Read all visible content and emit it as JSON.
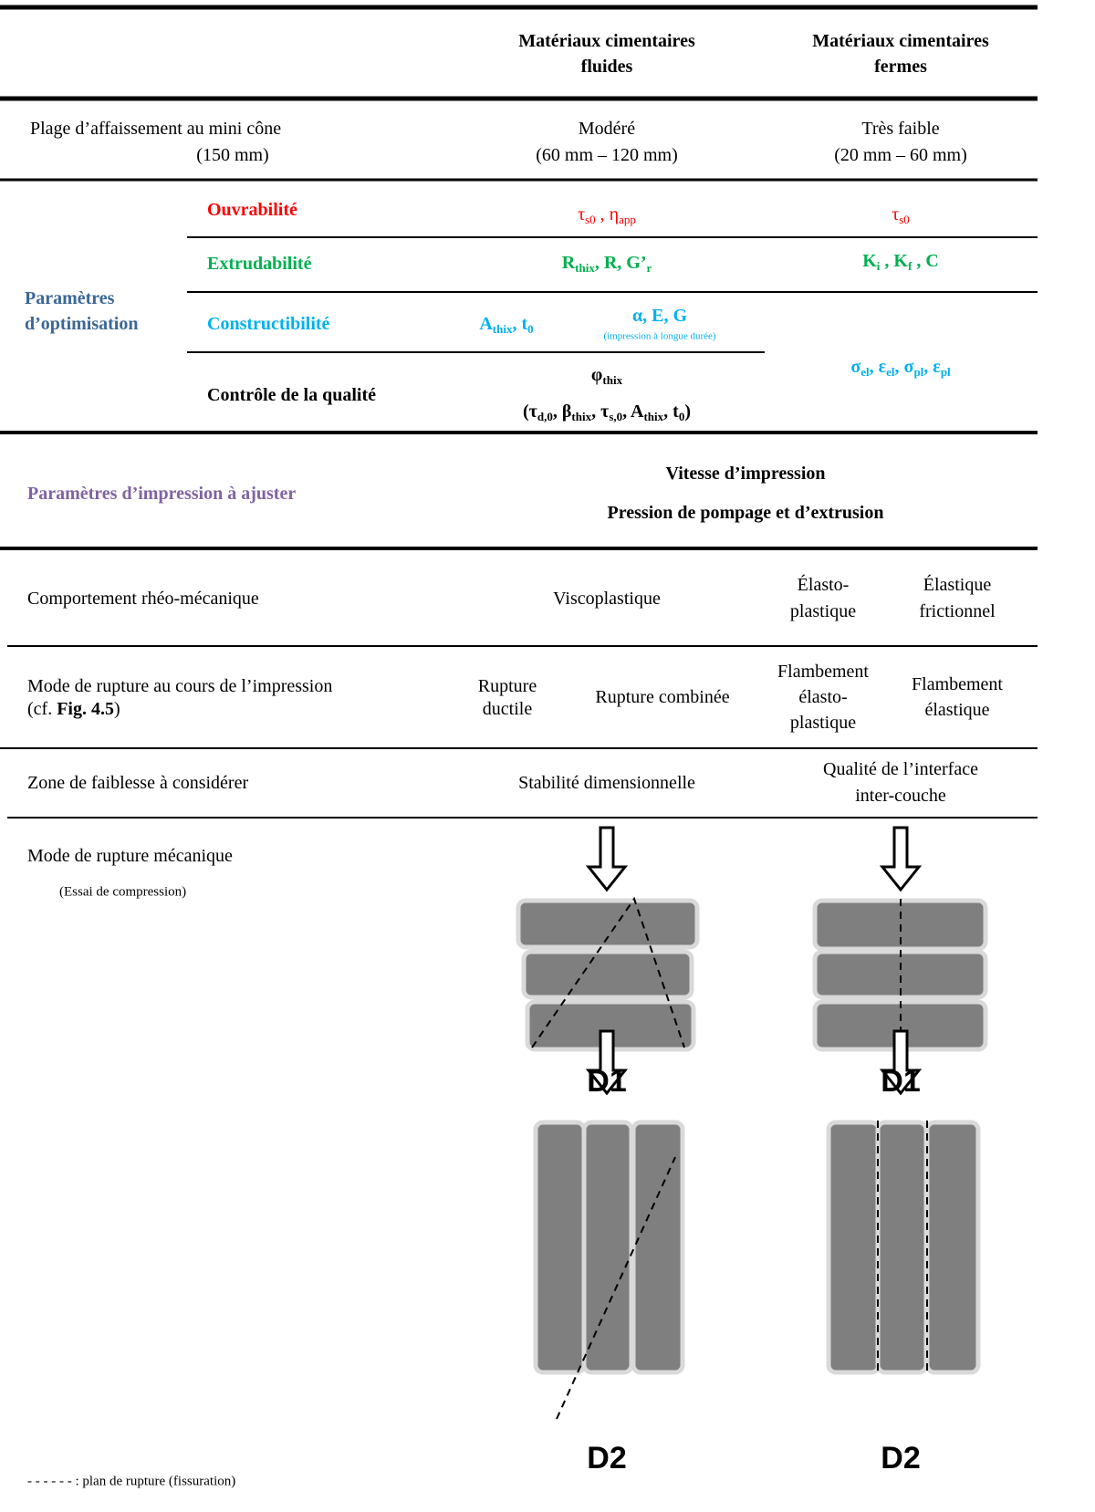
{
  "header": {
    "fluid": [
      "Matériaux cimentaires",
      "fluides"
    ],
    "firm": [
      "Matériaux cimentaires",
      "fermes"
    ]
  },
  "slump": {
    "label": [
      "Plage d’affaissement au mini cône",
      "(150 mm)"
    ],
    "fluid": [
      "Modéré",
      "(60 mm – 120 mm)"
    ],
    "firm": [
      "Très faible",
      "(20 mm – 60 mm)"
    ]
  },
  "optimisation": {
    "label": [
      "Paramètres",
      "d’optimisation"
    ],
    "workability": {
      "label": "Ouvrabilité",
      "fluid": [
        {
          "text": "τ",
          "sub": "s0"
        },
        {
          "text": " , η",
          "sub": "app"
        }
      ],
      "firm": [
        {
          "text": "τ",
          "sub": "s0"
        }
      ]
    },
    "extrudability": {
      "label": "Extrudabilité",
      "fluid": [
        {
          "text": "R",
          "sub": "thix"
        },
        {
          "text": ", R, G’",
          "sub": "r"
        }
      ],
      "firm": [
        {
          "text": "K",
          "sub": "i"
        },
        {
          "text": " , K",
          "sub": "f"
        },
        {
          "text": " , C"
        }
      ]
    },
    "buildability": {
      "label": "Constructibilité",
      "fluid_short": [
        {
          "text": "A",
          "sub": "thix"
        },
        {
          "text": ", t",
          "sub": "0"
        }
      ],
      "fluid_long": [
        {
          "text": "α, E, G"
        }
      ],
      "fluid_long_note": "(impression à longue durée)",
      "firm": [
        {
          "text": "σ",
          "sub": "el"
        },
        {
          "text": ", ε",
          "sub": "el"
        },
        {
          "text": ", σ",
          "sub": "pl"
        },
        {
          "text": ", ε",
          "sub": "pl"
        }
      ]
    },
    "quality": {
      "label": "Contrôle de la qualité",
      "fluid_main": [
        {
          "text": "φ",
          "sub": "thix"
        }
      ],
      "fluid_detail": [
        {
          "text": "(τ",
          "sub": "d,0"
        },
        {
          "text": ", β",
          "sub": "thix"
        },
        {
          "text": ", τ",
          "sub": "s,0"
        },
        {
          "text": ",  A",
          "sub": "thix"
        },
        {
          "text": ", t",
          "sub": "0"
        },
        {
          "text": ")"
        }
      ]
    }
  },
  "printing": {
    "label": "Paramètres d’impression à ajuster",
    "values": [
      "Vitesse d’impression",
      "Pression de pompage et d’extrusion"
    ]
  },
  "behaviour": {
    "label": "Comportement rhéo-mécanique",
    "fluid": "Viscoplastique",
    "firm_a": [
      "Élasto-",
      "plastique"
    ],
    "firm_b": [
      "Élastique",
      "frictionnel"
    ]
  },
  "print_failure": {
    "label": [
      {
        "text": "Mode de rupture au cours de l’impression"
      }
    ],
    "label_ref": [
      {
        "text": "(cf. "
      },
      {
        "text": "Fig. 4.5",
        "bold": true
      },
      {
        "text": ")"
      }
    ],
    "fluid_a": [
      "Rupture",
      "ductile"
    ],
    "fluid_b": "Rupture combinée",
    "firm_a": [
      "Flambement",
      "élasto-",
      "plastique"
    ],
    "firm_b": [
      "Flambement",
      "élastique"
    ]
  },
  "weakness": {
    "label": "Zone de faiblesse à considérer",
    "fluid": "Stabilité dimensionnelle",
    "firm": [
      "Qualité de l’interface",
      "inter-couche"
    ]
  },
  "mechanical": {
    "label": "Mode de rupture mécanique",
    "note": "(Essai de compression)",
    "fluid_d1": "D1",
    "firm_d1": "D1",
    "fluid_d2": "D2",
    "firm_d2": "D2",
    "legend": "- - - - - - : plan de rupture (fissuration)"
  }
}
